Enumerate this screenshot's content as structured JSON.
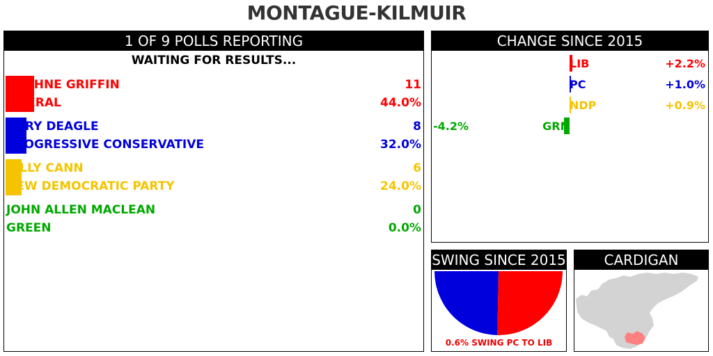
{
  "title": "MONTAGUE-KILMUIR",
  "results_panel": {
    "header": "1 OF 9 POLLS REPORTING",
    "status": "WAITING FOR RESULTS..."
  },
  "change_panel": {
    "header": "CHANGE SINCE 2015"
  },
  "swing_panel": {
    "header": "SWING SINCE 2015",
    "caption": "0.6% SWING PC TO LIB"
  },
  "map_panel": {
    "header": "CARDIGAN",
    "colors": {
      "region": "#d3d3d3",
      "highlight": "#ff8080"
    }
  },
  "colors": {
    "LIB": "#ff0000",
    "PC": "#0000dd",
    "NDP": "#f5c400",
    "GRN": "#00a800"
  },
  "chart_data": [
    {
      "type": "bar",
      "name": "results",
      "candidates": [
        {
          "name": "DAPHNE GRIFFIN",
          "party": "LIBERAL",
          "code": "LIB",
          "votes": 11,
          "pct": "44.0%",
          "share": 44.0
        },
        {
          "name": "CORY DEAGLE",
          "party": "PROGRESSIVE CONSERVATIVE",
          "code": "PC",
          "votes": 8,
          "pct": "32.0%",
          "share": 32.0
        },
        {
          "name": "BILLY CANN",
          "party": "NEW DEMOCRATIC PARTY",
          "code": "NDP",
          "votes": 6,
          "pct": "24.0%",
          "share": 24.0
        },
        {
          "name": "JOHN ALLEN MACLEAN",
          "party": "GREEN",
          "code": "GRN",
          "votes": 0,
          "pct": "0.0%",
          "share": 0.0
        }
      ]
    },
    {
      "type": "bar",
      "name": "change",
      "categories": [
        "LIB",
        "PC",
        "NDP",
        "GRN"
      ],
      "labels": [
        "+2.2%",
        "+1.0%",
        "+0.9%",
        "-4.2%"
      ],
      "values": [
        2.2,
        1.0,
        0.9,
        -4.2
      ]
    },
    {
      "type": "pie",
      "name": "swing",
      "slices": [
        {
          "code": "PC",
          "value": 49.4
        },
        {
          "code": "LIB",
          "value": 50.6
        }
      ],
      "swing_value": 0.6
    }
  ]
}
